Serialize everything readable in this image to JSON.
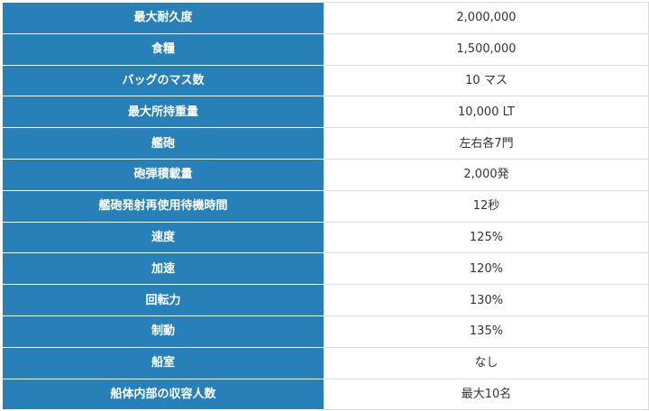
{
  "spec_table": {
    "rows": [
      {
        "label": "最大耐久度",
        "value": "2,000,000"
      },
      {
        "label": "食糧",
        "value": "1,500,000"
      },
      {
        "label": "バッグのマス数",
        "value": "10 マス"
      },
      {
        "label": "最大所持重量",
        "value": "10,000 LT"
      },
      {
        "label": "艦砲",
        "value": "左右各7門"
      },
      {
        "label": "砲弾積載量",
        "value": "2,000発"
      },
      {
        "label": "艦砲発射再使用待機時間",
        "value": "12秒"
      },
      {
        "label": "速度",
        "value": "125%"
      },
      {
        "label": "加速",
        "value": "120%"
      },
      {
        "label": "回転力",
        "value": "130%"
      },
      {
        "label": "制動",
        "value": "135%"
      },
      {
        "label": "船室",
        "value": "なし"
      },
      {
        "label": "船体内部の収容人数",
        "value": "最大10名"
      }
    ]
  },
  "colors": {
    "label_background": "#2880b9",
    "label_text": "#ffffff",
    "value_background": "#ffffff",
    "value_text": "#333333"
  }
}
